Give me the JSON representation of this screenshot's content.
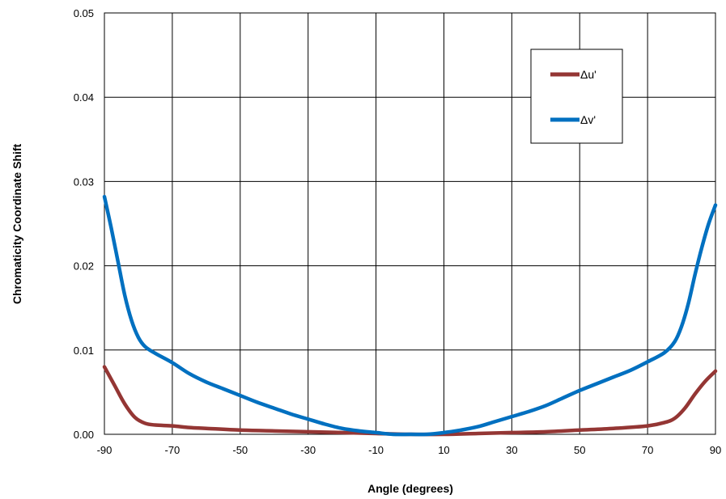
{
  "chart_data": {
    "type": "line",
    "xlabel": "Angle (degrees)",
    "ylabel": "Chromaticity Coordinate Shift",
    "xlim": [
      -90,
      90
    ],
    "ylim": [
      0,
      0.05
    ],
    "x_ticks": [
      "-90",
      "-70",
      "-50",
      "-30",
      "-10",
      "10",
      "30",
      "50",
      "70",
      "90"
    ],
    "y_ticks": [
      "0.00",
      "0.01",
      "0.02",
      "0.03",
      "0.04",
      "0.05"
    ],
    "grid": true,
    "legend_position": "top-right",
    "series": [
      {
        "name": "Δu'",
        "color": "#943634",
        "points": [
          [
            -90,
            0.008
          ],
          [
            -87,
            0.0058
          ],
          [
            -84,
            0.0036
          ],
          [
            -81,
            0.002
          ],
          [
            -78,
            0.0013
          ],
          [
            -75,
            0.0011
          ],
          [
            -70,
            0.001
          ],
          [
            -65,
            0.0008
          ],
          [
            -60,
            0.0007
          ],
          [
            -50,
            0.0005
          ],
          [
            -40,
            0.0004
          ],
          [
            -30,
            0.0003
          ],
          [
            -20,
            0.0002
          ],
          [
            -10,
            0.0001
          ],
          [
            0,
            0.0
          ],
          [
            10,
            0.0
          ],
          [
            20,
            0.0001
          ],
          [
            30,
            0.0002
          ],
          [
            40,
            0.0003
          ],
          [
            50,
            0.0005
          ],
          [
            60,
            0.0007
          ],
          [
            70,
            0.001
          ],
          [
            75,
            0.0014
          ],
          [
            78,
            0.0019
          ],
          [
            81,
            0.0031
          ],
          [
            84,
            0.0048
          ],
          [
            87,
            0.0063
          ],
          [
            90,
            0.0075
          ]
        ]
      },
      {
        "name": "Δv'",
        "color": "#0070C0",
        "points": [
          [
            -90,
            0.0282
          ],
          [
            -88,
            0.0245
          ],
          [
            -86,
            0.0205
          ],
          [
            -84,
            0.0165
          ],
          [
            -82,
            0.0135
          ],
          [
            -80,
            0.0115
          ],
          [
            -78,
            0.0104
          ],
          [
            -75,
            0.0096
          ],
          [
            -70,
            0.0085
          ],
          [
            -65,
            0.0072
          ],
          [
            -60,
            0.0062
          ],
          [
            -55,
            0.0054
          ],
          [
            -50,
            0.0046
          ],
          [
            -45,
            0.0038
          ],
          [
            -40,
            0.0031
          ],
          [
            -35,
            0.0024
          ],
          [
            -30,
            0.0018
          ],
          [
            -25,
            0.0012
          ],
          [
            -20,
            0.0007
          ],
          [
            -15,
            0.0004
          ],
          [
            -10,
            0.0002
          ],
          [
            -5,
            0.0
          ],
          [
            0,
            0.0
          ],
          [
            5,
            0.0
          ],
          [
            10,
            0.0002
          ],
          [
            15,
            0.0005
          ],
          [
            20,
            0.0009
          ],
          [
            25,
            0.0015
          ],
          [
            30,
            0.0021
          ],
          [
            35,
            0.0027
          ],
          [
            40,
            0.0034
          ],
          [
            45,
            0.0043
          ],
          [
            50,
            0.0052
          ],
          [
            55,
            0.006
          ],
          [
            60,
            0.0068
          ],
          [
            65,
            0.0076
          ],
          [
            70,
            0.0086
          ],
          [
            75,
            0.0097
          ],
          [
            78,
            0.011
          ],
          [
            80,
            0.0128
          ],
          [
            82,
            0.0155
          ],
          [
            84,
            0.019
          ],
          [
            86,
            0.0222
          ],
          [
            88,
            0.025
          ],
          [
            90,
            0.0272
          ]
        ]
      }
    ]
  }
}
